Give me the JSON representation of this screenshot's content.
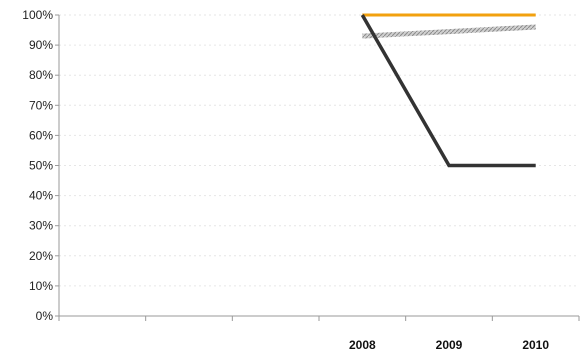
{
  "chart_data": {
    "type": "line",
    "title": "",
    "xlabel": "",
    "ylabel": "",
    "categories": [
      "",
      "",
      "",
      "2008",
      "2009",
      "2010"
    ],
    "ylim": [
      0,
      100
    ],
    "y_ticks": [
      "0%",
      "10%",
      "20%",
      "30%",
      "40%",
      "50%",
      "60%",
      "70%",
      "80%",
      "90%",
      "100%"
    ],
    "grid": true,
    "legend": "none",
    "series": [
      {
        "values": [
          null,
          null,
          null,
          100,
          100,
          100
        ],
        "color": "#f2a10f",
        "style": "solid"
      },
      {
        "values": [
          null,
          null,
          null,
          93,
          94.5,
          96
        ],
        "color": "#bfbfbf",
        "style": "hatched"
      },
      {
        "values": [
          null,
          null,
          null,
          100,
          50,
          50
        ],
        "color": "#333333",
        "style": "solid"
      }
    ]
  }
}
